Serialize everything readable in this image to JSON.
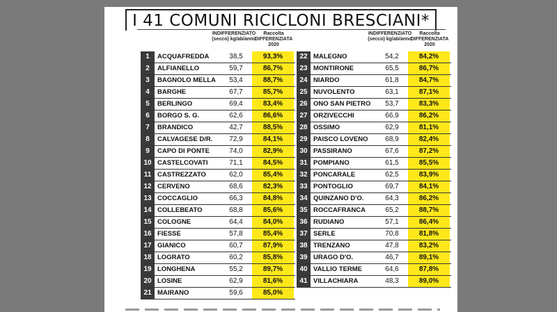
{
  "title": "I 41 COMUNI RICICLONI BRESCIANI*",
  "headers": {
    "ind_line1": "INDIFFERENZIATO",
    "ind_line2": "(secco) kg/ab/anno",
    "rac_line1": "Raccolta",
    "rac_line2": "DIFFERENZIATA 2020"
  },
  "left": [
    {
      "n": "1",
      "name": "ACQUAFREDDA",
      "ind": "38,5",
      "rac": "93,3%"
    },
    {
      "n": "2",
      "name": "ALFIANELLO",
      "ind": "59,7",
      "rac": "86,7%"
    },
    {
      "n": "3",
      "name": "BAGNOLO MELLA",
      "ind": "53,4",
      "rac": "88,7%"
    },
    {
      "n": "4",
      "name": "BARGHE",
      "ind": "67,7",
      "rac": "85,7%"
    },
    {
      "n": "5",
      "name": "BERLINGO",
      "ind": "69,4",
      "rac": "83,4%"
    },
    {
      "n": "6",
      "name": "BORGO S. G.",
      "ind": "62,6",
      "rac": "86,6%"
    },
    {
      "n": "7",
      "name": "BRANDICO",
      "ind": "42,7",
      "rac": "88,5%"
    },
    {
      "n": "8",
      "name": "CALVAGESE D/R.",
      "ind": "72,9",
      "rac": "84,1%"
    },
    {
      "n": "9",
      "name": "CAPO DI PONTE",
      "ind": "74,0",
      "rac": "82,9%"
    },
    {
      "n": "10",
      "name": "CASTELCOVATI",
      "ind": "71,1",
      "rac": "84,5%"
    },
    {
      "n": "11",
      "name": "CASTREZZATO",
      "ind": "62,0",
      "rac": "85,4%"
    },
    {
      "n": "12",
      "name": "CERVENO",
      "ind": "68,6",
      "rac": "82,3%"
    },
    {
      "n": "13",
      "name": "COCCAGLIO",
      "ind": "66,3",
      "rac": "84,8%"
    },
    {
      "n": "14",
      "name": "COLLEBEATO",
      "ind": "68,8",
      "rac": "85,6%"
    },
    {
      "n": "15",
      "name": "COLOGNE",
      "ind": "64,4",
      "rac": "84,0%"
    },
    {
      "n": "16",
      "name": "FIESSE",
      "ind": "57,8",
      "rac": "85,4%"
    },
    {
      "n": "17",
      "name": "GIANICO",
      "ind": "60,7",
      "rac": "87,9%"
    },
    {
      "n": "18",
      "name": "LOGRATO",
      "ind": "60,2",
      "rac": "85,8%"
    },
    {
      "n": "19",
      "name": "LONGHENA",
      "ind": "55,2",
      "rac": "89,7%"
    },
    {
      "n": "20",
      "name": "LOSINE",
      "ind": "62,9",
      "rac": "81,6%"
    },
    {
      "n": "21",
      "name": "MAIRANO",
      "ind": "59,6",
      "rac": "85,0%"
    }
  ],
  "right": [
    {
      "n": "22",
      "name": "MALEGNO",
      "ind": "54,2",
      "rac": "84,2%"
    },
    {
      "n": "23",
      "name": "MONTIRONE",
      "ind": "65,5",
      "rac": "86,7%"
    },
    {
      "n": "24",
      "name": "NIARDO",
      "ind": "61,8",
      "rac": "84,7%"
    },
    {
      "n": "25",
      "name": "NUVOLENTO",
      "ind": "63,1",
      "rac": "87,1%"
    },
    {
      "n": "26",
      "name": "ONO SAN PIETRO",
      "ind": "53,7",
      "rac": "83,3%"
    },
    {
      "n": "27",
      "name": "ORZIVECCHI",
      "ind": "66,9",
      "rac": "86,2%"
    },
    {
      "n": "28",
      "name": "OSSIMO",
      "ind": "62,9",
      "rac": "81,1%"
    },
    {
      "n": "29",
      "name": "PAISCO LOVENO",
      "ind": "68,9",
      "rac": "82,4%"
    },
    {
      "n": "30",
      "name": "PASSIRANO",
      "ind": "67,6",
      "rac": "87,2%"
    },
    {
      "n": "31",
      "name": "POMPIANO",
      "ind": "61,5",
      "rac": "85,5%"
    },
    {
      "n": "32",
      "name": "PONCARALE",
      "ind": "62,5",
      "rac": "83,9%"
    },
    {
      "n": "33",
      "name": "PONTOGLIO",
      "ind": "69,7",
      "rac": "84,1%"
    },
    {
      "n": "34",
      "name": "QUINZANO D'O.",
      "ind": "64,3",
      "rac": "86,2%"
    },
    {
      "n": "35",
      "name": "ROCCAFRANCA",
      "ind": "65,2",
      "rac": "88,7%"
    },
    {
      "n": "36",
      "name": "RUDIANO",
      "ind": "57,1",
      "rac": "86,4%"
    },
    {
      "n": "37",
      "name": "SERLE",
      "ind": "70,8",
      "rac": "81,8%"
    },
    {
      "n": "38",
      "name": "TRENZANO",
      "ind": "47,8",
      "rac": "83,2%"
    },
    {
      "n": "39",
      "name": "URAGO D'O.",
      "ind": "46,7",
      "rac": "89,1%"
    },
    {
      "n": "40",
      "name": "VALLIO TERME",
      "ind": "64,6",
      "rac": "87,8%"
    },
    {
      "n": "41",
      "name": "VILLACHIARA",
      "ind": "48,3",
      "rac": "89,0%"
    }
  ]
}
